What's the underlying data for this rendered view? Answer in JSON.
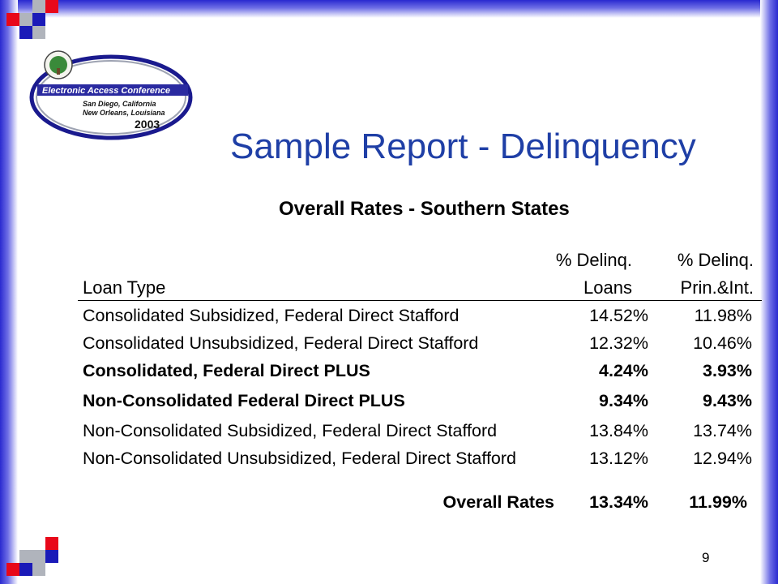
{
  "slide": {
    "title": "Sample Report - Delinquency",
    "subtitle": "Overall Rates - Southern States",
    "page_number": "9",
    "colors": {
      "title": "#1f3fa6",
      "frame": "#2a2ad0",
      "accent_red": "#e8081a"
    }
  },
  "logo": {
    "name": "Electronic Access Conference",
    "line1": "San Diego, California",
    "line2": "New Orleans, Louisiana",
    "year": "2003"
  },
  "table": {
    "headers": {
      "loan_type": "Loan Type",
      "loans_line1": "% Delinq.",
      "loans_line2": "Loans",
      "prin_line1": "% Delinq.",
      "prin_line2": "Prin.&Int."
    },
    "rows": [
      {
        "loan_type": "Consolidated Subsidized, Federal Direct Stafford",
        "loans": "14.52%",
        "prin_int": "11.98%",
        "bold": false
      },
      {
        "loan_type": "Consolidated Unsubsidized, Federal Direct Stafford",
        "loans": "12.32%",
        "prin_int": "10.46%",
        "bold": false
      },
      {
        "loan_type": "Consolidated, Federal Direct PLUS",
        "loans": "4.24%",
        "prin_int": "3.93%",
        "bold": true
      },
      {
        "loan_type": "Non-Consolidated Federal Direct PLUS",
        "loans": "9.34%",
        "prin_int": "9.43%",
        "bold": true
      },
      {
        "loan_type": "Non-Consolidated Subsidized, Federal Direct Stafford",
        "loans": "13.84%",
        "prin_int": "13.74%",
        "bold": false
      },
      {
        "loan_type": "Non-Consolidated Unsubsidized, Federal Direct Stafford",
        "loans": "13.12%",
        "prin_int": "12.94%",
        "bold": false
      }
    ],
    "overall": {
      "label": "Overall Rates",
      "loans": "13.34%",
      "prin_int": "11.99%"
    }
  }
}
